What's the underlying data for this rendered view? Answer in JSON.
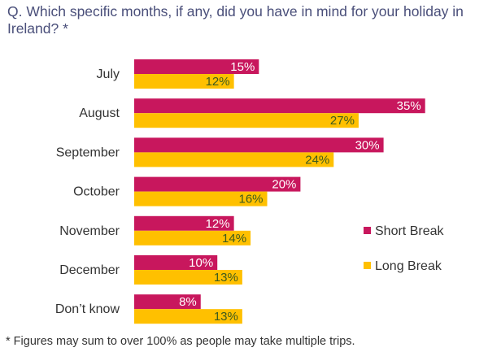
{
  "question": "Q. Which specific months, if any, did you have in mind for your holiday in Ireland? *",
  "footnote": "* Figures may sum to over 100% as people may take multiple trips.",
  "chart_data": {
    "type": "bar",
    "orientation": "horizontal",
    "title": "Q. Which specific months, if any, did you have in mind for your holiday in Ireland? *",
    "categories": [
      "July",
      "August",
      "September",
      "October",
      "November",
      "December",
      "Don’t know"
    ],
    "series": [
      {
        "name": "Short Break",
        "color": "#c8175d",
        "label_color": "#ffffff",
        "values": [
          15,
          35,
          30,
          20,
          12,
          10,
          8
        ]
      },
      {
        "name": "Long Break",
        "color": "#ffc000",
        "label_color": "#3d5a1e",
        "values": [
          12,
          27,
          24,
          16,
          14,
          13,
          13
        ]
      }
    ],
    "value_suffix": "%",
    "legend": {
      "position": "right"
    },
    "grid": false
  }
}
